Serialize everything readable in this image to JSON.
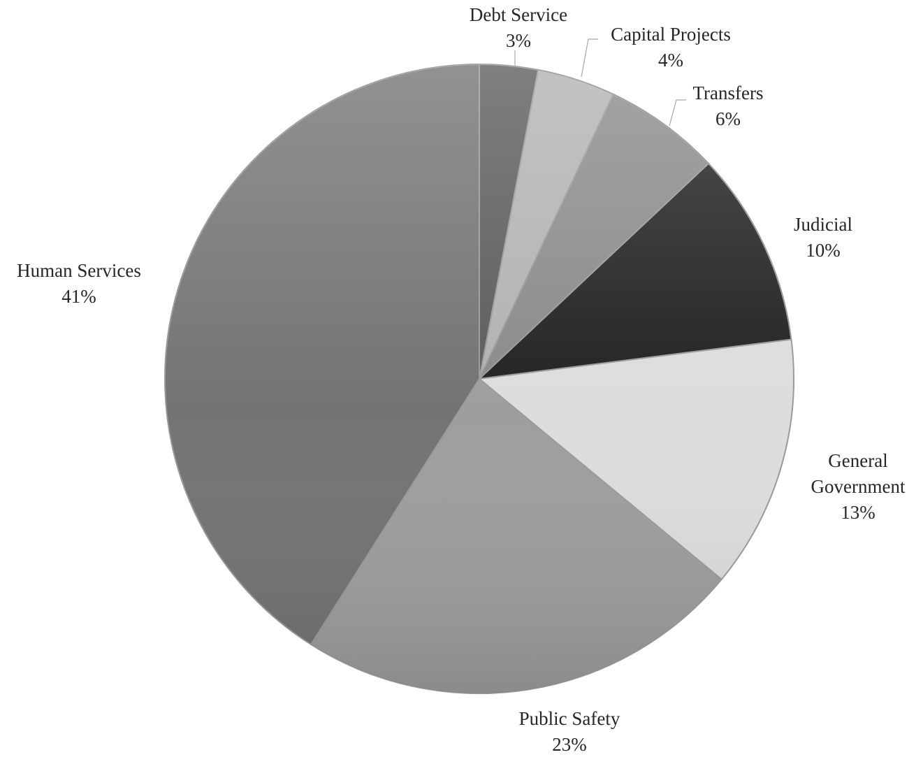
{
  "chart_data": {
    "type": "pie",
    "title": "",
    "slices": [
      {
        "name": "Debt Service",
        "value": 3,
        "label": "3%",
        "color": "#5b5b5b"
      },
      {
        "name": "Capital Projects",
        "value": 4,
        "label": "4%",
        "color": "#b2b2b2"
      },
      {
        "name": "Transfers",
        "value": 6,
        "label": "6%",
        "color": "#8a8a8a"
      },
      {
        "name": "Judicial",
        "value": 10,
        "label": "10%",
        "color": "#222222"
      },
      {
        "name": "General Government",
        "value": 13,
        "label": "13%",
        "color": "#dddddd"
      },
      {
        "name": "Public Safety",
        "value": 23,
        "label": "23%",
        "color": "#9e9e9e"
      },
      {
        "name": "Human Services",
        "value": 41,
        "label": "41%",
        "color": "#737373"
      }
    ],
    "start_angle_deg": 0,
    "direction": "clockwise",
    "legend": "none",
    "data_labels": "outside with category name and percentage"
  }
}
